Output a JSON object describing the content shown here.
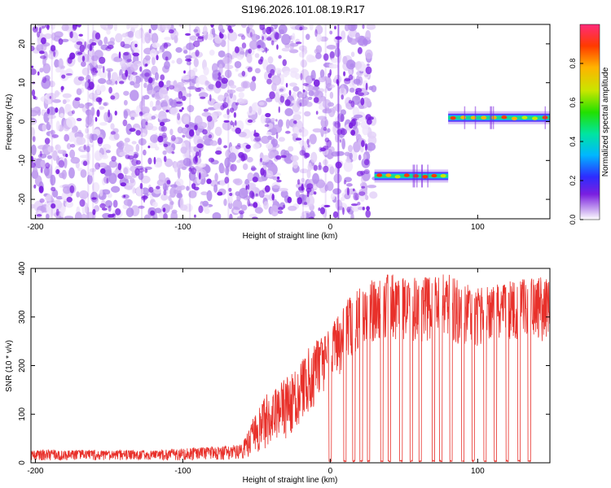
{
  "title": "S196.2026.101.08.19.R17",
  "colors": {
    "snr_line": "#e8302a",
    "spectro_noise": "#7a1fe0",
    "colormap": [
      "#ffffff",
      "#c9a8f0",
      "#7a1fe0",
      "#2d2cff",
      "#00b7ff",
      "#00e5a0",
      "#22e000",
      "#c8e600",
      "#ffb300",
      "#ff3a00",
      "#ff2a7a"
    ]
  },
  "chart_data": [
    {
      "type": "heatmap",
      "name": "spectrogram",
      "xlabel": "Height of straight line (km)",
      "ylabel": "Frequency (Hz)",
      "xlim": [
        -203,
        149
      ],
      "ylim": [
        -25,
        25
      ],
      "xticks": [
        -200,
        -100,
        0,
        100
      ],
      "yticks": [
        -20,
        -10,
        0,
        10,
        20
      ],
      "noise_region_x": [
        -203,
        30
      ],
      "segments": [
        {
          "x_start": 30,
          "x_end": 80,
          "frequency": -14,
          "peak_amplitude": 0.9
        },
        {
          "x_start": 80,
          "x_end": 149,
          "frequency": 1,
          "peak_amplitude": 1.0
        }
      ],
      "colorbar": {
        "label": "Normalized spectral amplitude",
        "range": [
          0,
          1
        ],
        "ticks": [
          0.0,
          0.2,
          0.4,
          0.6,
          0.8
        ]
      }
    },
    {
      "type": "line",
      "name": "snr",
      "xlabel": "Height of straight line (km)",
      "ylabel": "SNR (10 * v/v)",
      "xlim": [
        -203,
        149
      ],
      "ylim": [
        0,
        400
      ],
      "xticks": [
        -200,
        -100,
        0,
        100
      ],
      "yticks": [
        0,
        100,
        200,
        300,
        400
      ],
      "series": [
        {
          "name": "SNR",
          "x": [
            -203,
            -190,
            -180,
            -170,
            -160,
            -150,
            -140,
            -130,
            -120,
            -110,
            -100,
            -90,
            -80,
            -70,
            -60,
            -55,
            -50,
            -45,
            -40,
            -35,
            -30,
            -25,
            -20,
            -15,
            -10,
            -5,
            0,
            5,
            10,
            15,
            20,
            25,
            30,
            35,
            40,
            50,
            60,
            70,
            80,
            90,
            100,
            110,
            120,
            130,
            140,
            149
          ],
          "upper": [
            25,
            28,
            25,
            27,
            26,
            25,
            27,
            26,
            25,
            28,
            30,
            32,
            33,
            35,
            40,
            70,
            110,
            135,
            150,
            160,
            175,
            190,
            215,
            235,
            250,
            270,
            285,
            300,
            330,
            345,
            360,
            370,
            380,
            385,
            390,
            385,
            380,
            385,
            390,
            370,
            360,
            365,
            375,
            380,
            385,
            380
          ],
          "lower": [
            5,
            5,
            5,
            5,
            5,
            5,
            5,
            5,
            5,
            5,
            5,
            5,
            5,
            6,
            8,
            12,
            20,
            28,
            35,
            40,
            50,
            60,
            80,
            100,
            120,
            140,
            155,
            170,
            190,
            210,
            230,
            240,
            250,
            250,
            255,
            250,
            245,
            250,
            255,
            240,
            240,
            245,
            250,
            255,
            250,
            250
          ],
          "dropouts": [
            0,
            10,
            16,
            21,
            26,
            35,
            40,
            48,
            55,
            61,
            70,
            75,
            82,
            90,
            97,
            105,
            112,
            120,
            128,
            135
          ]
        }
      ]
    }
  ]
}
